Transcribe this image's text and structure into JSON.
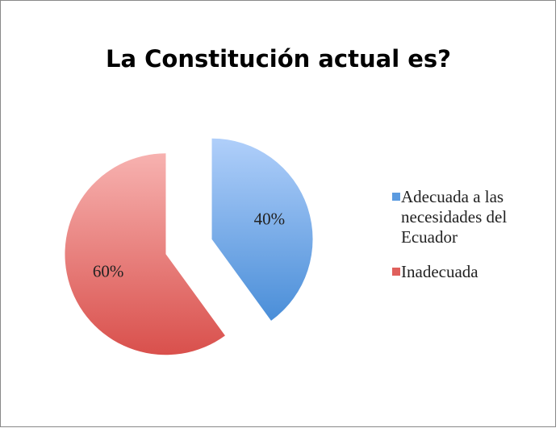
{
  "chart_data": {
    "type": "pie",
    "title": "La Constitución actual es?",
    "categories": [
      "Adecuada a las necesidades del Ecuador",
      "Inadecuada"
    ],
    "values": [
      40,
      60
    ],
    "value_labels": [
      "40%",
      "60%"
    ],
    "colors": [
      "#5b9be0",
      "#e0605c"
    ],
    "legend": "right"
  }
}
